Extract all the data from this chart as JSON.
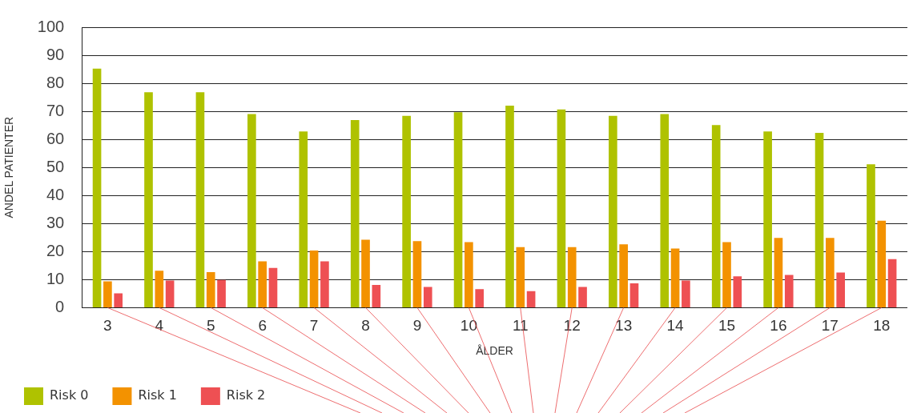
{
  "chart_data": {
    "type": "bar",
    "xlabel": "ÅLDER",
    "ylabel": "ANDEL PATIENTER",
    "categories": [
      "3",
      "4",
      "5",
      "6",
      "7",
      "8",
      "9",
      "10",
      "11",
      "12",
      "13",
      "14",
      "15",
      "16",
      "17",
      "18"
    ],
    "series": [
      {
        "name": "Risk 0",
        "color": "#afc200",
        "values": [
          85.2,
          76.8,
          76.8,
          69,
          62.8,
          66.9,
          68.4,
          69.7,
          72,
          70.7,
          68.4,
          69,
          65.1,
          62.8,
          62.3,
          51.1
        ]
      },
      {
        "name": "Risk 1",
        "color": "#f39200",
        "values": [
          9.4,
          13.2,
          12.7,
          16.5,
          20.4,
          24.2,
          23.7,
          23.4,
          21.6,
          21.6,
          22.6,
          21.1,
          23.4,
          24.9,
          24.9,
          31
        ]
      },
      {
        "name": "Risk 2",
        "color": "#ee5053",
        "values": [
          5.1,
          9.7,
          9.9,
          14.2,
          16.5,
          8.1,
          7.4,
          6.6,
          5.9,
          7.4,
          8.7,
          9.7,
          11.2,
          11.7,
          12.5,
          17.3
        ]
      }
    ],
    "ylim": [
      0,
      100
    ],
    "yticks": [
      0,
      10,
      20,
      30,
      40,
      50,
      60,
      70,
      80,
      90,
      100
    ],
    "grid": "y",
    "legend": "bottom left"
  }
}
